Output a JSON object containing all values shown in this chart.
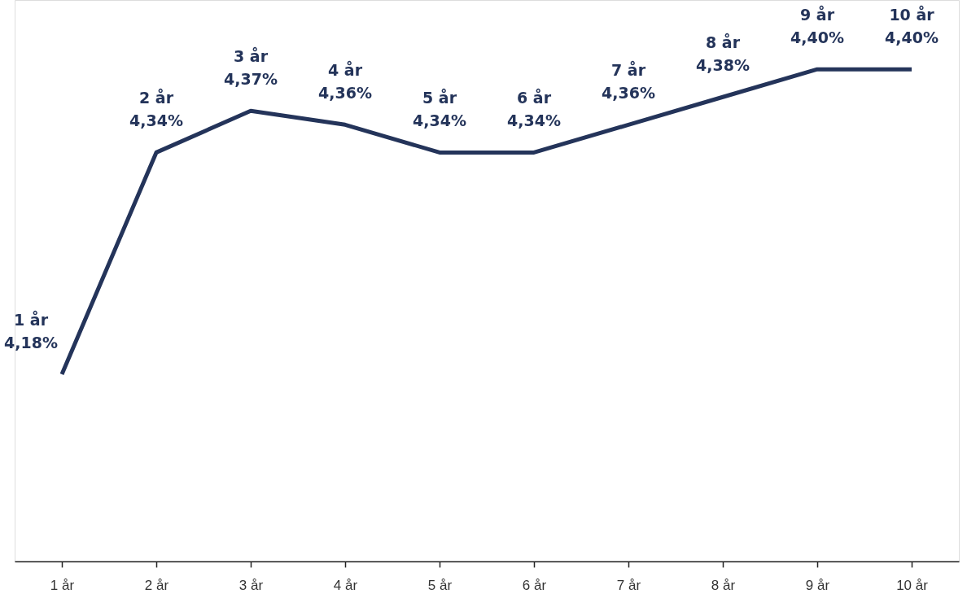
{
  "chart_data": {
    "type": "line",
    "categories": [
      "1 år",
      "2 år",
      "3 år",
      "4 år",
      "5 år",
      "6 år",
      "7 år",
      "8 år",
      "9 år",
      "10 år"
    ],
    "series": [
      {
        "color": "#24345a",
        "values": [
          4.18,
          4.34,
          4.37,
          4.36,
          4.34,
          4.34,
          4.36,
          4.38,
          4.4,
          4.4
        ],
        "value_labels": [
          "1 år\n4,18%",
          "2 år\n4,34%",
          "3 år\n4,37%",
          "4 år\n4,36%",
          "5 år\n4,34%",
          "6 år\n4,34%",
          "7 år\n4,36%",
          "8 år\n4,38%",
          "9 år\n4,40%",
          "10 år\n4,40%"
        ]
      }
    ],
    "ylim": [
      4.045,
      4.45
    ],
    "grid": false,
    "marker": "none",
    "line_style": "solid"
  }
}
